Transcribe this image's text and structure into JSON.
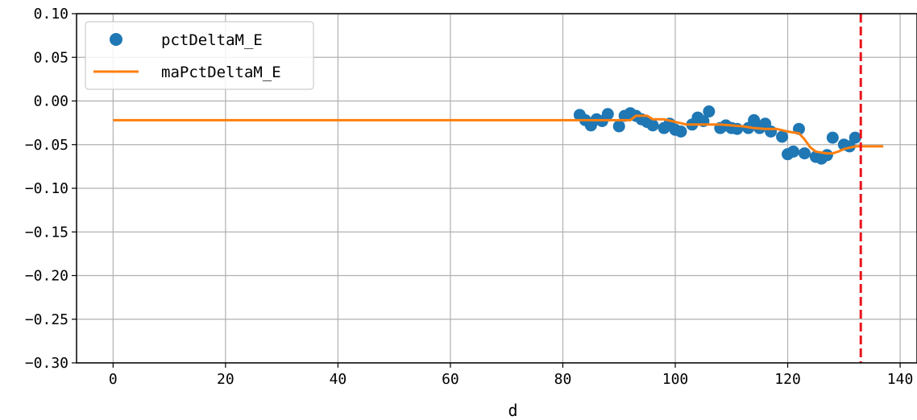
{
  "chart_data": {
    "type": "scatter",
    "xlabel": "d",
    "ylabel": "",
    "title": "",
    "xlim": [
      -6.5,
      143
    ],
    "ylim": [
      -0.3,
      0.1
    ],
    "xticks": [
      0,
      20,
      40,
      60,
      80,
      100,
      120,
      140
    ],
    "yticks": [
      0.1,
      0.05,
      0.0,
      -0.05,
      -0.1,
      -0.15,
      -0.2,
      -0.25,
      -0.3
    ],
    "ytick_labels": [
      "0.10",
      "0.05",
      "0.00",
      "−0.05",
      "−0.10",
      "−0.15",
      "−0.20",
      "−0.25",
      "−0.30"
    ],
    "xtick_labels": [
      "0",
      "20",
      "40",
      "60",
      "80",
      "100",
      "120",
      "140"
    ],
    "grid": true,
    "legend_position": "top-left",
    "series": [
      {
        "name": "pctDeltaM_E",
        "kind": "scatter",
        "color": "#1f77b4",
        "x": [
          83,
          84,
          85,
          86,
          87,
          88,
          90,
          91,
          92,
          93,
          94,
          95,
          96,
          98,
          99,
          100,
          101,
          103,
          104,
          105,
          106,
          108,
          109,
          110,
          111,
          113,
          114,
          115,
          116,
          117,
          119,
          120,
          121,
          122,
          123,
          125,
          126,
          127,
          128,
          130,
          131,
          132
        ],
        "y": [
          -0.016,
          -0.022,
          -0.028,
          -0.021,
          -0.023,
          -0.015,
          -0.029,
          -0.017,
          -0.014,
          -0.017,
          -0.021,
          -0.024,
          -0.028,
          -0.031,
          -0.026,
          -0.033,
          -0.035,
          -0.027,
          -0.019,
          -0.023,
          -0.012,
          -0.031,
          -0.028,
          -0.031,
          -0.032,
          -0.031,
          -0.022,
          -0.031,
          -0.026,
          -0.035,
          -0.041,
          -0.061,
          -0.058,
          -0.032,
          -0.06,
          -0.064,
          -0.066,
          -0.062,
          -0.042,
          -0.05,
          -0.052,
          -0.042
        ]
      },
      {
        "name": "maPctDeltaM_E",
        "kind": "line",
        "color": "#ff7f0e",
        "x": [
          0,
          83,
          88,
          91,
          92,
          93,
          95,
          96,
          97,
          98,
          100,
          102,
          104,
          106,
          108,
          110,
          112,
          114,
          116,
          118,
          120,
          121,
          122,
          123,
          124,
          125,
          126,
          127,
          128,
          129,
          130,
          132,
          134,
          137
        ],
        "y": [
          -0.022,
          -0.022,
          -0.022,
          -0.022,
          -0.022,
          -0.017,
          -0.017,
          -0.021,
          -0.021,
          -0.021,
          -0.024,
          -0.027,
          -0.027,
          -0.027,
          -0.027,
          -0.028,
          -0.029,
          -0.031,
          -0.032,
          -0.032,
          -0.035,
          -0.036,
          -0.037,
          -0.044,
          -0.053,
          -0.058,
          -0.059,
          -0.06,
          -0.06,
          -0.058,
          -0.055,
          -0.052,
          -0.052,
          -0.052
        ]
      }
    ],
    "vline": {
      "x": 133,
      "color": "#e8141c",
      "style": "dashed"
    }
  }
}
